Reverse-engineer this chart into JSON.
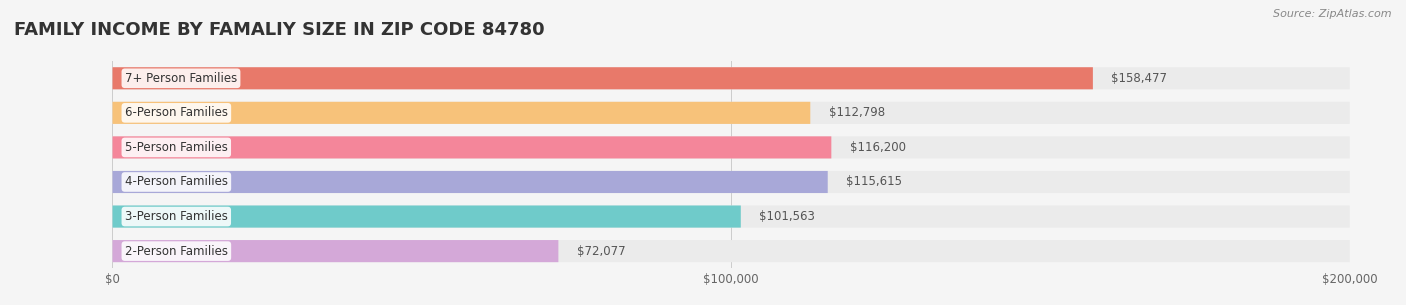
{
  "title": "FAMILY INCOME BY FAMALIY SIZE IN ZIP CODE 84780",
  "source": "Source: ZipAtlas.com",
  "categories": [
    "2-Person Families",
    "3-Person Families",
    "4-Person Families",
    "5-Person Families",
    "6-Person Families",
    "7+ Person Families"
  ],
  "values": [
    72077,
    101563,
    115615,
    116200,
    112798,
    158477
  ],
  "bar_colors": [
    "#d4a8d8",
    "#6fcbca",
    "#a8a8d8",
    "#f4869a",
    "#f7c27a",
    "#e8796a"
  ],
  "label_colors": [
    "#d4a8d8",
    "#6fcbca",
    "#a8a8d8",
    "#f4869a",
    "#f7c27a",
    "#e8796a"
  ],
  "value_labels": [
    "$72,077",
    "$101,563",
    "$115,615",
    "$116,200",
    "$112,798",
    "$158,477"
  ],
  "xlim": [
    0,
    200000
  ],
  "xticks": [
    0,
    100000,
    200000
  ],
  "xtick_labels": [
    "$0",
    "$100,000",
    "$200,000"
  ],
  "background_color": "#f5f5f5",
  "bar_background_color": "#ebebeb",
  "title_fontsize": 13,
  "bar_height": 0.62,
  "figsize": [
    14.06,
    3.05
  ],
  "dpi": 100
}
